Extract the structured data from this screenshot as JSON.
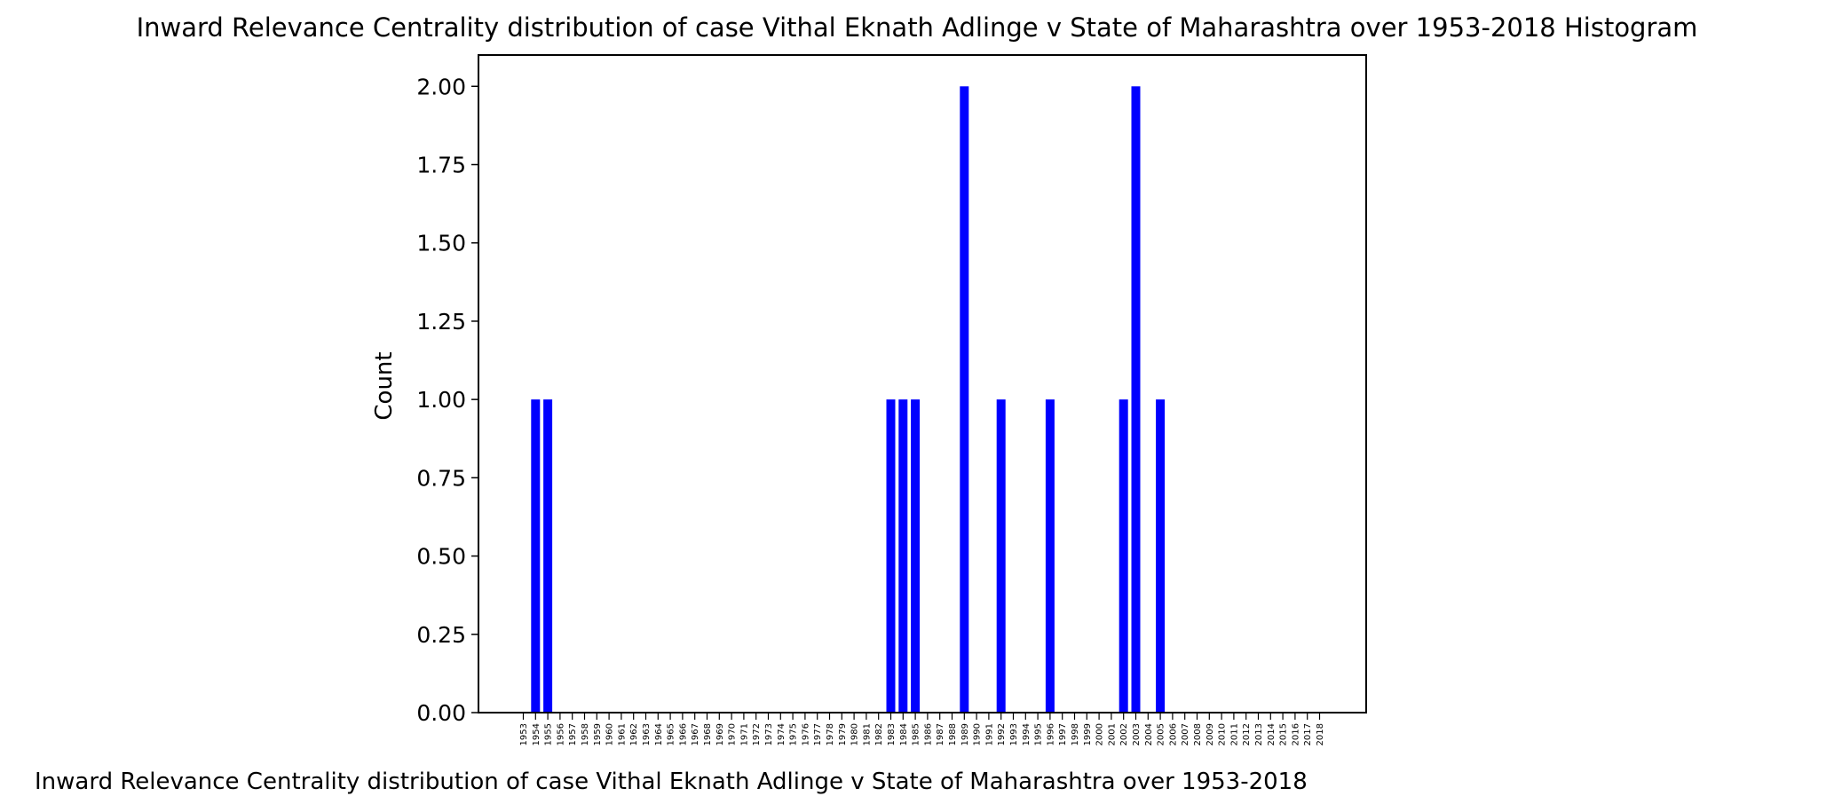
{
  "chart_data": {
    "type": "bar",
    "title": "Inward Relevance Centrality distribution of case Vithal Eknath Adlinge v State of Maharashtra over 1953-2018 Histogram",
    "xlabel": "Inward Relevance Centrality distribution of case Vithal Eknath Adlinge v State of Maharashtra over 1953-2018",
    "ylabel": "Count",
    "ylim": [
      0,
      2.1
    ],
    "yticks": [
      "0.00",
      "0.25",
      "0.50",
      "0.75",
      "1.00",
      "1.25",
      "1.50",
      "1.75",
      "2.00"
    ],
    "categories": [
      "1953",
      "1954",
      "1955",
      "1956",
      "1957",
      "1958",
      "1959",
      "1960",
      "1961",
      "1962",
      "1963",
      "1964",
      "1965",
      "1966",
      "1967",
      "1968",
      "1969",
      "1970",
      "1971",
      "1972",
      "1973",
      "1974",
      "1975",
      "1976",
      "1977",
      "1978",
      "1979",
      "1980",
      "1981",
      "1982",
      "1983",
      "1984",
      "1985",
      "1986",
      "1987",
      "1988",
      "1989",
      "1990",
      "1991",
      "1992",
      "1993",
      "1994",
      "1995",
      "1996",
      "1997",
      "1998",
      "1999",
      "2000",
      "2001",
      "2002",
      "2003",
      "2004",
      "2005",
      "2006",
      "2007",
      "2008",
      "2009",
      "2010",
      "2011",
      "2012",
      "2013",
      "2014",
      "2015",
      "2016",
      "2017",
      "2018"
    ],
    "values": [
      0,
      1,
      1,
      0,
      0,
      0,
      0,
      0,
      0,
      0,
      0,
      0,
      0,
      0,
      0,
      0,
      0,
      0,
      0,
      0,
      0,
      0,
      0,
      0,
      0,
      0,
      0,
      0,
      0,
      0,
      1,
      1,
      1,
      0,
      0,
      0,
      2,
      0,
      0,
      1,
      0,
      0,
      0,
      1,
      0,
      0,
      0,
      0,
      0,
      1,
      2,
      0,
      1,
      0,
      0,
      0,
      0,
      0,
      0,
      0,
      0,
      0,
      0,
      0,
      0,
      0
    ],
    "grid": false,
    "bar_color": "#0000ff"
  }
}
